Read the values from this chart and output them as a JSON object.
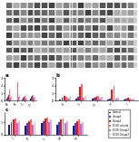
{
  "bg_color": "#f0f0f0",
  "gel_bg": "#d8d8d8",
  "bar_colors": [
    "#1a1a8c",
    "#4444cc",
    "#cc2222",
    "#ff6666",
    "#cc66cc",
    "#ddaadd"
  ],
  "legend_labels": [
    "Control",
    "Group2",
    "Group3",
    "EC50 control",
    "EC50 Group2",
    "EC50 Group3"
  ],
  "chart_a_groups": [
    "A",
    "B",
    "C",
    "D"
  ],
  "chart_a_values": [
    [
      0.3,
      0.4,
      0.2,
      0.25
    ],
    [
      0.5,
      0.6,
      0.4,
      0.5
    ],
    [
      0.8,
      1.2,
      0.5,
      0.7
    ],
    [
      1.5,
      2.5,
      0.6,
      0.8
    ],
    [
      0.4,
      0.5,
      0.35,
      0.4
    ],
    [
      0.6,
      0.8,
      0.45,
      0.55
    ]
  ],
  "chart_b_groups": [
    "E",
    "F",
    "G",
    "H",
    "I"
  ],
  "chart_b_values": [
    [
      0.2,
      0.3,
      0.25,
      0.2,
      0.15
    ],
    [
      0.4,
      0.5,
      0.4,
      0.3,
      0.25
    ],
    [
      0.6,
      1.8,
      0.5,
      1.5,
      0.4
    ],
    [
      0.5,
      2.2,
      0.6,
      2.0,
      0.35
    ],
    [
      0.3,
      0.4,
      0.3,
      0.25,
      0.2
    ],
    [
      0.5,
      0.7,
      0.5,
      0.45,
      0.3
    ]
  ],
  "chart_c_groups": [
    "J",
    "K",
    "L",
    "M",
    "N"
  ],
  "chart_c_values": [
    [
      0.8,
      0.7,
      0.9,
      0.8,
      0.75
    ],
    [
      1.0,
      0.9,
      1.1,
      1.0,
      0.9
    ],
    [
      1.2,
      1.1,
      1.3,
      1.2,
      1.1
    ],
    [
      1.3,
      1.2,
      1.4,
      1.3,
      1.2
    ],
    [
      0.9,
      0.8,
      1.0,
      0.9,
      0.85
    ],
    [
      1.1,
      1.0,
      1.2,
      1.1,
      1.0
    ]
  ]
}
